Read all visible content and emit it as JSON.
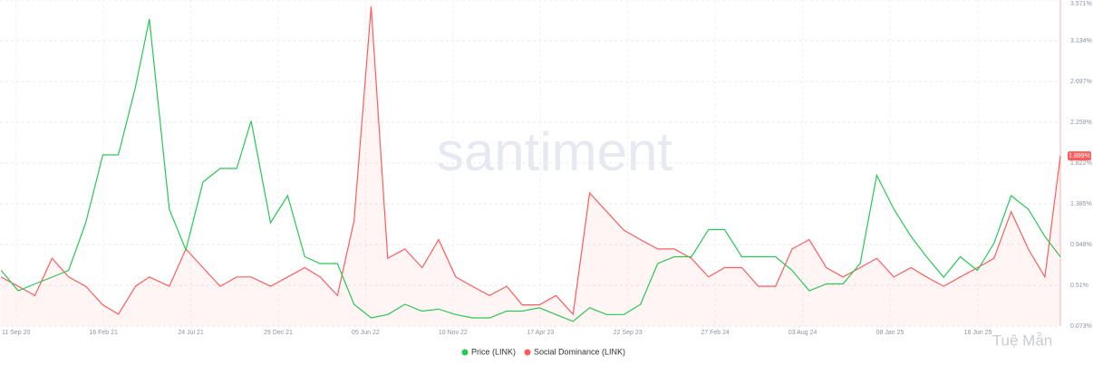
{
  "chart_data": {
    "type": "line",
    "watermark": "santiment",
    "credit": "Tuệ Mẫn",
    "x": [
      "2020-08-15",
      "2020-09-15",
      "2020-10-15",
      "2020-11-15",
      "2020-12-15",
      "2021-01-15",
      "2021-02-15",
      "2021-03-15",
      "2021-04-15",
      "2021-05-10",
      "2021-06-15",
      "2021-07-15",
      "2021-08-15",
      "2021-09-15",
      "2021-10-15",
      "2021-11-10",
      "2021-12-15",
      "2022-01-15",
      "2022-02-15",
      "2022-03-15",
      "2022-04-15",
      "2022-05-15",
      "2022-06-15",
      "2022-07-15",
      "2022-08-15",
      "2022-09-15",
      "2022-10-15",
      "2022-11-15",
      "2022-12-15",
      "2023-01-15",
      "2023-02-15",
      "2023-03-15",
      "2023-04-15",
      "2023-05-15",
      "2023-06-15",
      "2023-07-15",
      "2023-08-15",
      "2023-09-15",
      "2023-10-15",
      "2023-11-15",
      "2023-12-15",
      "2024-01-15",
      "2024-02-15",
      "2024-03-15",
      "2024-04-15",
      "2024-05-15",
      "2024-06-15",
      "2024-07-15",
      "2024-08-15",
      "2024-09-15",
      "2024-10-15",
      "2024-11-15",
      "2024-12-15",
      "2025-01-15",
      "2025-02-15",
      "2025-03-15",
      "2025-04-15",
      "2025-05-15",
      "2025-06-15",
      "2025-07-15",
      "2025-08-15",
      "2025-09-15",
      "2025-10-15",
      "2025-11-12"
    ],
    "xlim": [
      "2020-08-13",
      "2025-11-12"
    ],
    "xticks": [
      {
        "value": "2020-09-11",
        "label": "11 Sep 20"
      },
      {
        "value": "2021-02-16",
        "label": "16 Feb 21"
      },
      {
        "value": "2021-07-24",
        "label": "24 Jul 21"
      },
      {
        "value": "2021-12-29",
        "label": "29 Dec 21"
      },
      {
        "value": "2022-06-05",
        "label": "05 Jun 22"
      },
      {
        "value": "2022-11-10",
        "label": "10 Nov 22"
      },
      {
        "value": "2023-04-17",
        "label": "17 Apr 23"
      },
      {
        "value": "2023-09-22",
        "label": "22 Sep 23"
      },
      {
        "value": "2024-02-27",
        "label": "27 Feb 24"
      },
      {
        "value": "2024-08-03",
        "label": "03 Aug 24"
      },
      {
        "value": "2025-01-08",
        "label": "08 Jan 25"
      },
      {
        "value": "2025-06-16",
        "label": "16 Jun 25"
      }
    ],
    "ylim": [
      4.8,
      52.8
    ],
    "y2lim": [
      0.073,
      3.571
    ],
    "y2ticks": [
      {
        "value": 0.073,
        "label": "0.073%"
      },
      {
        "value": 0.51,
        "label": "0.51%"
      },
      {
        "value": 0.948,
        "label": "0.948%"
      },
      {
        "value": 1.385,
        "label": "1.385%"
      },
      {
        "value": 1.822,
        "label": "1.822%"
      },
      {
        "value": 2.259,
        "label": "2.259%"
      },
      {
        "value": 2.697,
        "label": "2.697%"
      },
      {
        "value": 3.134,
        "label": "3.134%"
      },
      {
        "value": 3.571,
        "label": "3.571%"
      }
    ],
    "grid": true,
    "series": [
      {
        "name": "Price (LINK)",
        "color": "#26c953",
        "axis": "y",
        "values": [
          13,
          10,
          11,
          12,
          13,
          20,
          30,
          30,
          40,
          50,
          22,
          16,
          26,
          28,
          28,
          35,
          20,
          24,
          15,
          14,
          14,
          8,
          6,
          6.5,
          8,
          7,
          7.3,
          6.5,
          6,
          6,
          7,
          7,
          7.5,
          6.5,
          5.5,
          7.5,
          6.5,
          6.5,
          8,
          14,
          15,
          15,
          19,
          19,
          15,
          15,
          15,
          13,
          10,
          11,
          11,
          14,
          27,
          22,
          18,
          15,
          12,
          15,
          13,
          17,
          24,
          22,
          18,
          15
        ]
      },
      {
        "name": "Social Dominance (LINK)",
        "color": "#ff5b5b",
        "axis": "y2",
        "values": [
          0.6,
          0.5,
          0.4,
          0.8,
          0.6,
          0.5,
          0.3,
          0.2,
          0.5,
          0.6,
          0.5,
          0.9,
          0.7,
          0.5,
          0.6,
          0.6,
          0.5,
          0.6,
          0.7,
          0.6,
          0.4,
          1.2,
          3.5,
          0.8,
          0.9,
          0.7,
          1.0,
          0.6,
          0.5,
          0.4,
          0.5,
          0.3,
          0.3,
          0.4,
          0.2,
          1.5,
          1.3,
          1.1,
          1.0,
          0.9,
          0.9,
          0.8,
          0.6,
          0.7,
          0.7,
          0.5,
          0.5,
          0.9,
          1.0,
          0.7,
          0.6,
          0.7,
          0.8,
          0.6,
          0.7,
          0.6,
          0.5,
          0.6,
          0.7,
          0.8,
          1.3,
          0.9,
          0.6,
          1.899
        ],
        "last_value_label": "1.899%"
      }
    ]
  }
}
